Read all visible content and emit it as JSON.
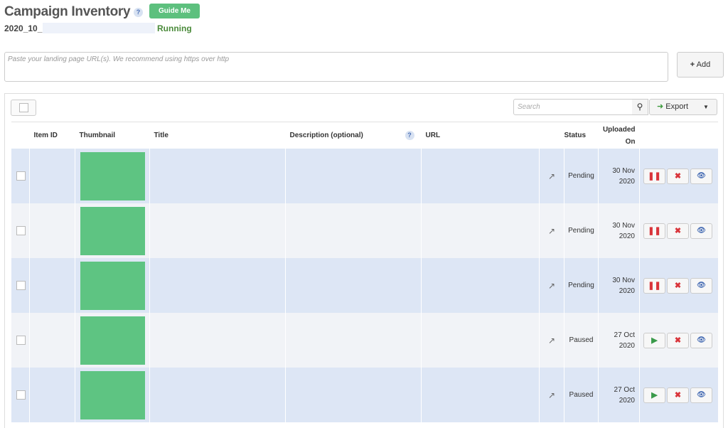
{
  "header": {
    "title": "Campaign Inventory",
    "help": "?",
    "guide_label": "Guide Me",
    "campaign_name": "2020_10_",
    "campaign_status": "Running"
  },
  "url_input": {
    "placeholder": "Paste your landing page URL(s). We recommend using https over http",
    "add_label": "Add",
    "add_icon": "+"
  },
  "toolbar": {
    "search_placeholder": "Search",
    "search_icon": "🔍",
    "export_label": "Export",
    "caret": "▼"
  },
  "colors": {
    "thumbnail": "#5ec482",
    "row_a": "#dde6f5",
    "row_b": "#f1f3f7",
    "running": "#4a8a3a"
  },
  "table": {
    "headers": {
      "item_id": "Item ID",
      "thumbnail": "Thumbnail",
      "title": "Title",
      "description": "Description (optional)",
      "desc_help": "?",
      "url": "URL",
      "status": "Status",
      "uploaded_1": "Uploaded",
      "uploaded_2": "On"
    },
    "rows": [
      {
        "status": "Pending",
        "date1": "30 Nov",
        "date2": "2020",
        "toggle": "❚❚"
      },
      {
        "status": "Pending",
        "date1": "30 Nov",
        "date2": "2020",
        "toggle": "❚❚"
      },
      {
        "status": "Pending",
        "date1": "30 Nov",
        "date2": "2020",
        "toggle": "❚❚"
      },
      {
        "status": "Paused",
        "date1": "27 Oct",
        "date2": "2020",
        "toggle": "▶"
      },
      {
        "status": "Paused",
        "date1": "27 Oct",
        "date2": "2020",
        "toggle": "▶"
      }
    ],
    "icons": {
      "external": "↗",
      "delete": "✖",
      "view": "👁"
    }
  }
}
